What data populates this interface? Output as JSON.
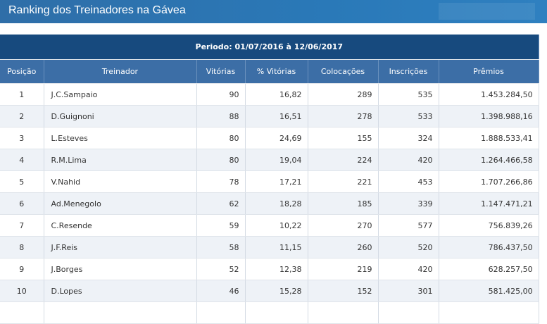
{
  "header": {
    "title": "Ranking dos Treinadores na Gávea"
  },
  "table": {
    "period": "Periodo: 01/07/2016 à 12/06/2017",
    "columns": [
      "Posição",
      "Treinador",
      "Vitórias",
      "% Vitórias",
      "Colocações",
      "Inscrições",
      "Prêmios"
    ],
    "rows": [
      [
        "1",
        "J.C.Sampaio",
        "90",
        "16,82",
        "289",
        "535",
        "1.453.284,50"
      ],
      [
        "2",
        "D.Guignoni",
        "88",
        "16,51",
        "278",
        "533",
        "1.398.988,16"
      ],
      [
        "3",
        "L.Esteves",
        "80",
        "24,69",
        "155",
        "324",
        "1.888.533,41"
      ],
      [
        "4",
        "R.M.Lima",
        "80",
        "19,04",
        "224",
        "420",
        "1.264.466,58"
      ],
      [
        "5",
        "V.Nahid",
        "78",
        "17,21",
        "221",
        "453",
        "1.707.266,86"
      ],
      [
        "6",
        "Ad.Menegolo",
        "62",
        "18,28",
        "185",
        "339",
        "1.147.471,21"
      ],
      [
        "7",
        "C.Resende",
        "59",
        "10,22",
        "270",
        "577",
        "756.839,26"
      ],
      [
        "8",
        "J.F.Reis",
        "58",
        "11,15",
        "260",
        "520",
        "786.437,50"
      ],
      [
        "9",
        "J.Borges",
        "52",
        "12,38",
        "219",
        "420",
        "628.257,50"
      ],
      [
        "10",
        "D.Lopes",
        "46",
        "15,28",
        "152",
        "301",
        "581.425,00"
      ]
    ]
  }
}
